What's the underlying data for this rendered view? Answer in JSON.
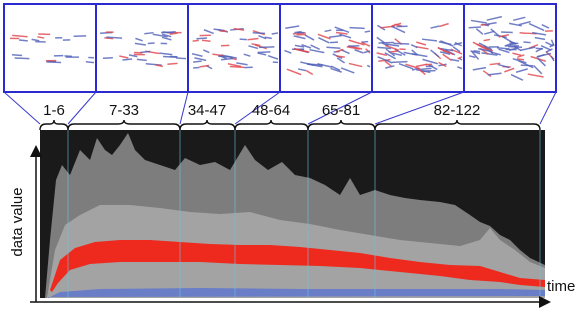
{
  "range_labels": [
    "1-6",
    "7-33",
    "34-47",
    "48-64",
    "65-81",
    "82-122"
  ],
  "y_axis_label": "data value",
  "x_axis_label": "time"
}
